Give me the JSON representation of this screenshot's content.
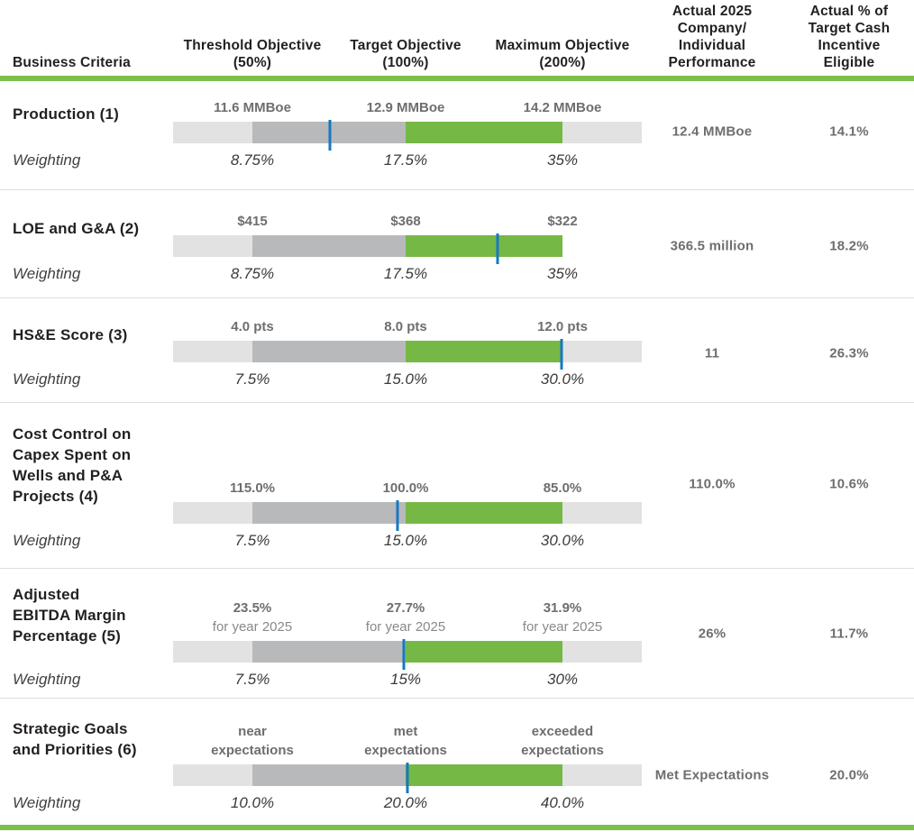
{
  "header": {
    "business_criteria": "Business Criteria",
    "threshold": "Threshold Objective\n(50%)",
    "target": "Target Objective\n(100%)",
    "maximum": "Maximum Objective\n(200%)",
    "actual_performance": "Actual 2025\nCompany/\nIndividual\nPerformance",
    "actual_pct_eligible": "Actual % of\nTarget Cash\nIncentive\nEligible"
  },
  "weighting_label": "Weighting",
  "colors": {
    "bar_green": "#76b845",
    "rule_green": "#7dbf4b",
    "bar_light_gray": "#e2e2e3",
    "bar_mid_gray": "#b8b9bb",
    "marker_blue": "#1579c0",
    "title_text": "#231f20",
    "value_gray": "#6d6e71"
  },
  "rows": [
    {
      "title": "Production (1)",
      "objectives": [
        {
          "text": "11.6 MMBoe",
          "sub": ""
        },
        {
          "text": "12.9 MMBoe",
          "sub": ""
        },
        {
          "text": "14.2 MMBoe",
          "sub": ""
        }
      ],
      "weights": [
        "8.75%",
        "17.5%",
        "35%"
      ],
      "actual": "12.4 MMBoe",
      "eligible": "14.1%",
      "marker_style": "left:33.5%"
    },
    {
      "title": "LOE and G&A (2)",
      "objectives": [
        {
          "text": "$415",
          "sub": ""
        },
        {
          "text": "$368",
          "sub": ""
        },
        {
          "text": "$322",
          "sub": ""
        }
      ],
      "weights": [
        "8.75%",
        "17.5%",
        "35%"
      ],
      "actual": "366.5 million",
      "eligible": "18.2%",
      "marker_style": "left:69.2%"
    },
    {
      "title": "HS&E Score (3)",
      "objectives": [
        {
          "text": "4.0 pts",
          "sub": ""
        },
        {
          "text": "8.0 pts",
          "sub": ""
        },
        {
          "text": "12.0 pts",
          "sub": ""
        }
      ],
      "weights": [
        "7.5%",
        "15.0%",
        "30.0%"
      ],
      "actual": "11",
      "eligible": "26.3%",
      "marker_style": "left:82.9%"
    },
    {
      "title": "Cost Control on\nCapex Spent on\nWells and P&A\nProjects (4)",
      "objectives": [
        {
          "text": "115.0%",
          "sub": ""
        },
        {
          "text": "100.0%",
          "sub": ""
        },
        {
          "text": "85.0%",
          "sub": ""
        }
      ],
      "weights": [
        "7.5%",
        "15.0%",
        "30.0%"
      ],
      "actual": "110.0%",
      "eligible": "10.6%",
      "marker_style": "left:47.9%"
    },
    {
      "title": "Adjusted\nEBITDA Margin\nPercentage (5)",
      "objectives": [
        {
          "text": "23.5%",
          "sub": "for year 2025"
        },
        {
          "text": "27.7%",
          "sub": "for year 2025"
        },
        {
          "text": "31.9%",
          "sub": "for year 2025"
        }
      ],
      "weights": [
        "7.5%",
        "15%",
        "30%"
      ],
      "actual": "26%",
      "eligible": "11.7%",
      "marker_style": "left:49.2%"
    },
    {
      "title": "Strategic Goals\nand Priorities (6)",
      "objectives": [
        {
          "text": "near\nexpectations",
          "sub": ""
        },
        {
          "text": "met\nexpectations",
          "sub": ""
        },
        {
          "text": "exceeded\nexpectations",
          "sub": ""
        }
      ],
      "weights": [
        "10.0%",
        "20.0%",
        "40.0%"
      ],
      "actual": "Met Expectations",
      "eligible": "20.0%",
      "marker_style": "left:50%"
    }
  ],
  "chart_data": {
    "type": "table",
    "title": "Annual cash incentive business criteria, objectives and results",
    "columns": [
      "Business Criteria",
      "Threshold Objective (50%)",
      "Target Objective (100%)",
      "Maximum Objective (200%)",
      "Actual 2025 Company/Individual Performance",
      "Actual % of Target Cash Incentive Eligible"
    ],
    "rows": [
      {
        "criteria": "Production (1)",
        "threshold": "11.6 MMBoe",
        "target": "12.9 MMBoe",
        "maximum": "14.2 MMBoe",
        "weighting": [
          "8.75%",
          "17.5%",
          "35%"
        ],
        "actual": "12.4 MMBoe",
        "eligible": "14.1%"
      },
      {
        "criteria": "LOE and G&A (2)",
        "threshold": "$415",
        "target": "$368",
        "maximum": "$322",
        "weighting": [
          "8.75%",
          "17.5%",
          "35%"
        ],
        "actual": "366.5 million",
        "eligible": "18.2%"
      },
      {
        "criteria": "HS&E Score (3)",
        "threshold": "4.0 pts",
        "target": "8.0 pts",
        "maximum": "12.0 pts",
        "weighting": [
          "7.5%",
          "15.0%",
          "30.0%"
        ],
        "actual": "11",
        "eligible": "26.3%"
      },
      {
        "criteria": "Cost Control on Capex Spent on Wells and P&A Projects (4)",
        "threshold": "115.0%",
        "target": "100.0%",
        "maximum": "85.0%",
        "weighting": [
          "7.5%",
          "15.0%",
          "30.0%"
        ],
        "actual": "110.0%",
        "eligible": "10.6%"
      },
      {
        "criteria": "Adjusted EBITDA Margin Percentage (5)",
        "threshold": "23.5% for year 2025",
        "target": "27.7% for year 2025",
        "maximum": "31.9% for year 2025",
        "weighting": [
          "7.5%",
          "15%",
          "30%"
        ],
        "actual": "26%",
        "eligible": "11.7%"
      },
      {
        "criteria": "Strategic Goals and Priorities (6)",
        "threshold": "near expectations",
        "target": "met expectations",
        "maximum": "exceeded expectations",
        "weighting": [
          "10.0%",
          "20.0%",
          "40.0%"
        ],
        "actual": "Met Expectations",
        "eligible": "20.0%"
      }
    ]
  }
}
